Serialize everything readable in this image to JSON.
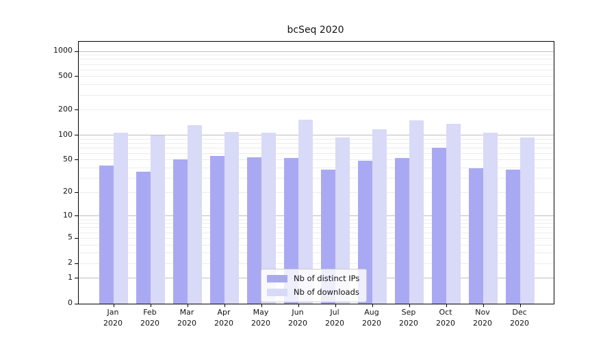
{
  "chart_data": {
    "type": "bar",
    "title": "bcSeq 2020",
    "categories": [
      "Jan",
      "Feb",
      "Mar",
      "Apr",
      "May",
      "Jun",
      "Jul",
      "Aug",
      "Sep",
      "Oct",
      "Nov",
      "Dec"
    ],
    "category_year": "2020",
    "series": [
      {
        "name": "Nb of distinct IPs",
        "color": "#a9a9f3",
        "values": [
          43,
          36,
          51,
          56,
          54,
          53,
          38,
          49,
          53,
          71,
          40,
          38
        ]
      },
      {
        "name": "Nb of downloads",
        "color": "#d9d9f8",
        "values": [
          106,
          100,
          132,
          109,
          106,
          153,
          93,
          117,
          150,
          136,
          106,
          93
        ]
      }
    ],
    "xlabel": "",
    "ylabel": "",
    "yscale": "log1p",
    "ylim": [
      0,
      1300
    ],
    "yticks": [
      0,
      1,
      2,
      5,
      10,
      20,
      50,
      100,
      200,
      500,
      1000
    ],
    "major_gridlines": [
      1,
      10,
      100,
      1000
    ],
    "minor_gridlines": [
      2,
      3,
      4,
      5,
      6,
      7,
      8,
      9,
      20,
      30,
      40,
      50,
      60,
      70,
      80,
      90,
      200,
      300,
      400,
      500,
      600,
      700,
      800,
      900
    ],
    "grid": "on",
    "legend_position": "bottom-center",
    "colors": {
      "background": "#ffffff",
      "axis": "#000000",
      "major_grid": "#bdbdbd",
      "minor_grid": "#ececec",
      "text": "#111111"
    }
  }
}
